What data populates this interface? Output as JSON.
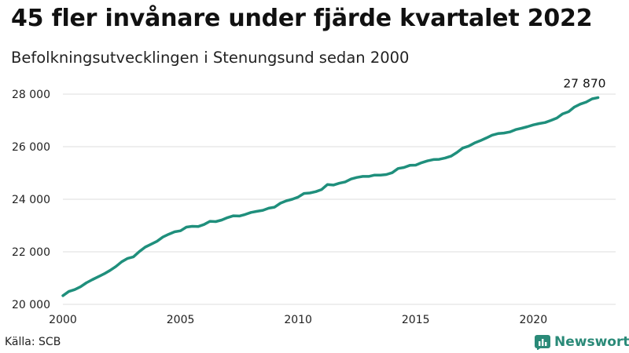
{
  "header": {
    "title": "45 fler invånare under fjärde kvartalet 2022",
    "subtitle": "Befolkningsutvecklingen i Stenungsund sedan 2000"
  },
  "footer": {
    "source": "Källa: SCB",
    "brand": "Newsworthy",
    "brand_icon": "chart-logo-icon"
  },
  "colors": {
    "line": "#1f8f7c",
    "grid": "#dcdcdc",
    "brand": "#2a8a78"
  },
  "chart_data": {
    "type": "line",
    "title": "45 fler invånare under fjärde kvartalet 2022",
    "subtitle": "Befolkningsutvecklingen i Stenungsund sedan 2000",
    "xlabel": "",
    "ylabel": "",
    "xlim": [
      2000,
      2023.5
    ],
    "ylim": [
      20000,
      28000
    ],
    "x_ticks": [
      2000,
      2005,
      2010,
      2015,
      2020
    ],
    "y_ticks": [
      20000,
      22000,
      24000,
      26000,
      28000
    ],
    "y_tick_labels": [
      "20 000",
      "22 000",
      "24 000",
      "26 000",
      "28 000"
    ],
    "grid": true,
    "end_label": "27 870",
    "series": [
      {
        "x": [
          2000.0,
          2000.25,
          2000.5,
          2000.75,
          2001.0,
          2001.25,
          2001.5,
          2001.75,
          2002.0,
          2002.25,
          2002.5,
          2002.75,
          2003.0,
          2003.25,
          2003.5,
          2003.75,
          2004.0,
          2004.25,
          2004.5,
          2004.75,
          2005.0,
          2005.25,
          2005.5,
          2005.75,
          2006.0,
          2006.25,
          2006.5,
          2006.75,
          2007.0,
          2007.25,
          2007.5,
          2007.75,
          2008.0,
          2008.25,
          2008.5,
          2008.75,
          2009.0,
          2009.25,
          2009.5,
          2009.75,
          2010.0,
          2010.25,
          2010.5,
          2010.75,
          2011.0,
          2011.25,
          2011.5,
          2011.75,
          2012.0,
          2012.25,
          2012.5,
          2012.75,
          2013.0,
          2013.25,
          2013.5,
          2013.75,
          2014.0,
          2014.25,
          2014.5,
          2014.75,
          2015.0,
          2015.25,
          2015.5,
          2015.75,
          2016.0,
          2016.25,
          2016.5,
          2016.75,
          2017.0,
          2017.25,
          2017.5,
          2017.75,
          2018.0,
          2018.25,
          2018.5,
          2018.75,
          2019.0,
          2019.25,
          2019.5,
          2019.75,
          2020.0,
          2020.25,
          2020.5,
          2020.75,
          2021.0,
          2021.25,
          2021.5,
          2021.75,
          2022.0,
          2022.25,
          2022.5,
          2022.75
        ],
        "values": [
          20330,
          20490,
          20560,
          20670,
          20820,
          20940,
          21050,
          21160,
          21290,
          21440,
          21620,
          21750,
          21810,
          22010,
          22180,
          22290,
          22400,
          22560,
          22670,
          22760,
          22800,
          22940,
          22970,
          22960,
          23040,
          23160,
          23150,
          23210,
          23300,
          23370,
          23360,
          23420,
          23500,
          23540,
          23580,
          23660,
          23700,
          23850,
          23940,
          24000,
          24080,
          24220,
          24240,
          24290,
          24370,
          24560,
          24540,
          24610,
          24660,
          24770,
          24830,
          24870,
          24870,
          24920,
          24920,
          24940,
          25010,
          25170,
          25210,
          25290,
          25300,
          25390,
          25460,
          25510,
          25520,
          25570,
          25640,
          25780,
          25950,
          26020,
          26140,
          26230,
          26330,
          26440,
          26500,
          26520,
          26560,
          26650,
          26700,
          26760,
          26830,
          26880,
          26920,
          27000,
          27090,
          27250,
          27330,
          27510,
          27620,
          27700,
          27820,
          27870
        ]
      }
    ]
  }
}
